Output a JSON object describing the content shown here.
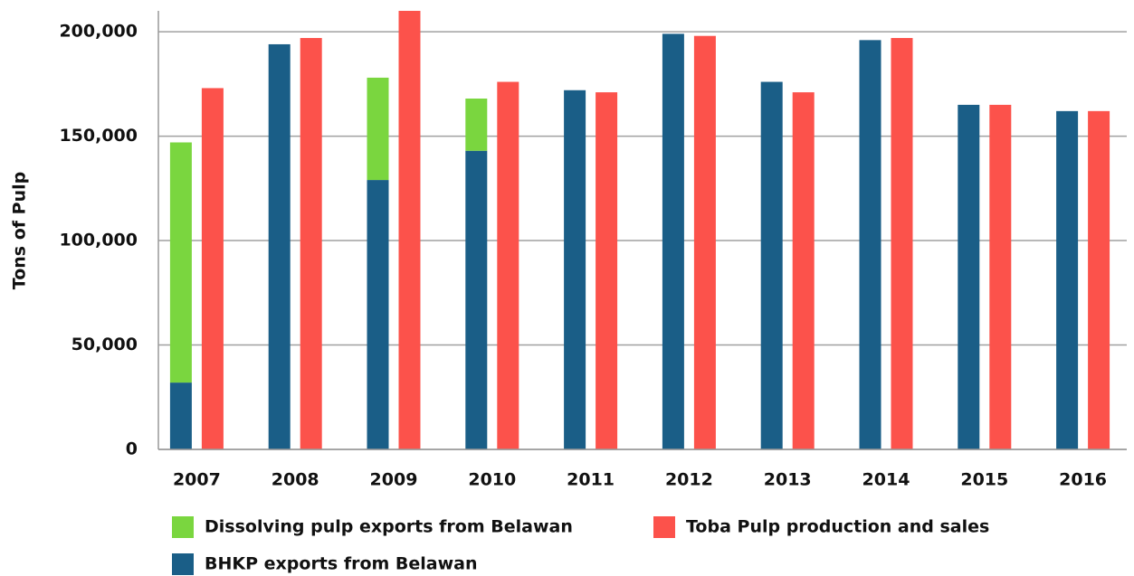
{
  "chart_data": {
    "type": "bar",
    "y_label": "Tons of Pulp",
    "categories": [
      "2007",
      "2008",
      "2009",
      "2010",
      "2011",
      "2012",
      "2013",
      "2014",
      "2015",
      "2016"
    ],
    "series": [
      {
        "name": "Dissolving pulp exports from Belawan",
        "color": "#7ad63f",
        "stack": 0,
        "values": [
          115000,
          null,
          49000,
          25000,
          null,
          null,
          null,
          null,
          null,
          null
        ]
      },
      {
        "name": "Toba Pulp production and sales",
        "color": "#fc524b",
        "stack": 1,
        "values": [
          173000,
          197000,
          210000,
          176000,
          171000,
          198000,
          171000,
          197000,
          165000,
          162000
        ]
      },
      {
        "name": "BHKP exports from Belawan",
        "color": "#1a5e87",
        "stack": 0,
        "values": [
          32000,
          194000,
          129000,
          143000,
          172000,
          199000,
          176000,
          196000,
          165000,
          162000
        ]
      }
    ],
    "ylim": [
      0,
      210000
    ],
    "yticks": [
      0,
      {
        "value": 50000,
        "label": "50,000"
      },
      {
        "value": 100000,
        "label": "100,000"
      },
      {
        "value": 150000,
        "label": "150,000"
      },
      {
        "value": 200000,
        "label": "200,000"
      }
    ],
    "grid": true,
    "legend": "bottom"
  }
}
